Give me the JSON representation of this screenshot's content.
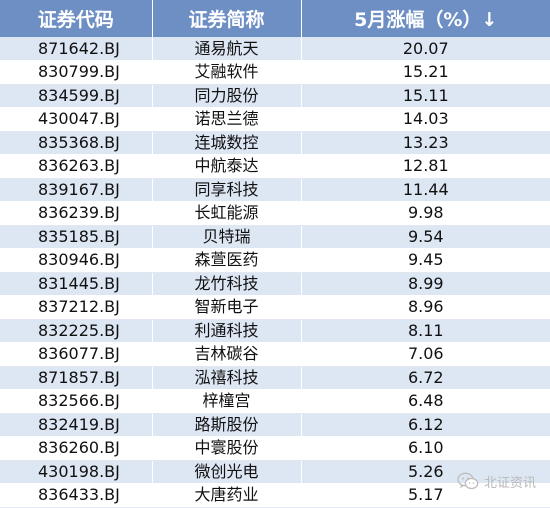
{
  "table": {
    "headers": [
      "证券代码",
      "证券简称",
      "5月涨幅（%）↓"
    ],
    "rows": [
      {
        "code": "871642.BJ",
        "name": "通易航天",
        "value": "20.07"
      },
      {
        "code": "830799.BJ",
        "name": "艾融软件",
        "value": "15.21"
      },
      {
        "code": "834599.BJ",
        "name": "同力股份",
        "value": "15.11"
      },
      {
        "code": "430047.BJ",
        "name": "诺思兰德",
        "value": "14.03"
      },
      {
        "code": "835368.BJ",
        "name": "连城数控",
        "value": "13.23"
      },
      {
        "code": "836263.BJ",
        "name": "中航泰达",
        "value": "12.81"
      },
      {
        "code": "839167.BJ",
        "name": "同享科技",
        "value": "11.44"
      },
      {
        "code": "836239.BJ",
        "name": "长虹能源",
        "value": "9.98"
      },
      {
        "code": "835185.BJ",
        "name": "贝特瑞",
        "value": "9.54"
      },
      {
        "code": "830946.BJ",
        "name": "森萱医药",
        "value": "9.45"
      },
      {
        "code": "831445.BJ",
        "name": "龙竹科技",
        "value": "8.99"
      },
      {
        "code": "837212.BJ",
        "name": "智新电子",
        "value": "8.96"
      },
      {
        "code": "832225.BJ",
        "name": "利通科技",
        "value": "8.11"
      },
      {
        "code": "836077.BJ",
        "name": "吉林碳谷",
        "value": "7.06"
      },
      {
        "code": "871857.BJ",
        "name": "泓禧科技",
        "value": "6.72"
      },
      {
        "code": "832566.BJ",
        "name": "梓橦宫",
        "value": "6.48"
      },
      {
        "code": "832419.BJ",
        "name": "路斯股份",
        "value": "6.12"
      },
      {
        "code": "836260.BJ",
        "name": "中寰股份",
        "value": "6.10"
      },
      {
        "code": "430198.BJ",
        "name": "微创光电",
        "value": "5.26"
      },
      {
        "code": "836433.BJ",
        "name": "大唐药业",
        "value": "5.17"
      }
    ]
  },
  "watermark": {
    "text": "北证资讯",
    "icon": "wechat-icon"
  },
  "colors": {
    "header_bg": "#6d8fc4",
    "stripe": "#dde6f3"
  }
}
